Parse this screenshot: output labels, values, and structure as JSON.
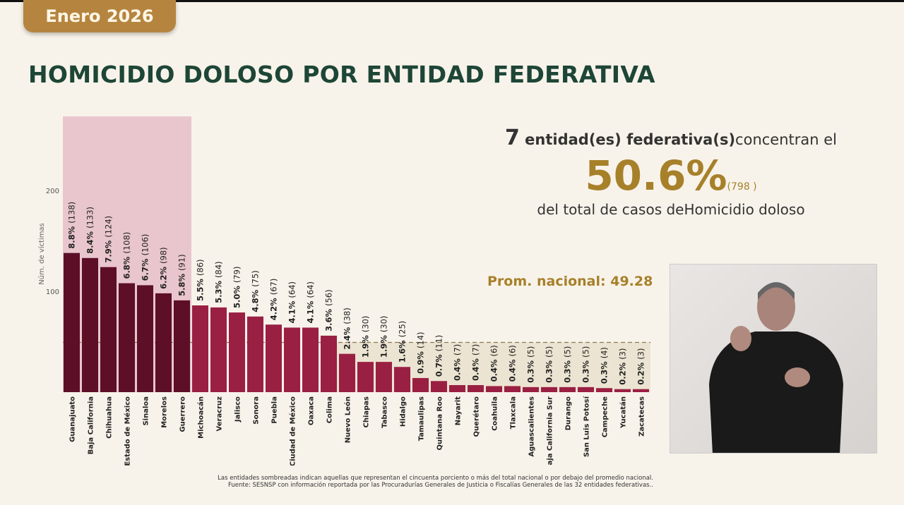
{
  "header": {
    "badge": "Enero 2026",
    "title": "HOMICIDIO DOLOSO POR ENTIDAD FEDERATIVA"
  },
  "summary": {
    "count": "7",
    "line1": " entidad(es) federativa(s)",
    "line1b": "concentran el",
    "percent": "50.6%",
    "total": "(798 )",
    "line3": "del total de casos deHomicidio doloso"
  },
  "average_label": "Prom. nacional: 49.28",
  "footer": {
    "note": "Las entidades sombreadas indican aquellas que representan el cincuenta porciento o más del total nacional o por debajo del promedio nacional.",
    "source": "Fuente: SESNSP con información reportada por las Procuradurías Generales de Justicia o Fiscalías Generales de las 32 entidades federativas.."
  },
  "colors": {
    "top": "#5c0f27",
    "rest": "#9a2043",
    "top_shade": "#e9c6cd",
    "below_avg_shade": "#ece4d2",
    "title": "#1d4637",
    "accent": "#a7802a"
  },
  "chart_data": {
    "type": "bar",
    "ylabel": "Núm. de víctimas",
    "ylim": [
      0,
      270
    ],
    "yticks": [
      100,
      200
    ],
    "average": 49.28,
    "top_group_count": 7,
    "categories": [
      "Guanajuato",
      "Baja California",
      "Chihuahua",
      "Estado de México",
      "Sinaloa",
      "Morelos",
      "Guerrero",
      "Michoacán",
      "Veracruz",
      "Jalisco",
      "Sonora",
      "Puebla",
      "Ciudad de México",
      "Oaxaca",
      "Colima",
      "Nuevo León",
      "Chiapas",
      "Tabasco",
      "Hidalgo",
      "Tamaulipas",
      "Quintana Roo",
      "Nayarit",
      "Querétaro",
      "Coahuila",
      "Tlaxcala",
      "Aguascalientes",
      "Baja California Sur",
      "Durango",
      "San Luis Potosí",
      "Campeche",
      "Yucatán",
      "Zacatecas"
    ],
    "values": [
      138,
      133,
      124,
      108,
      106,
      98,
      91,
      86,
      84,
      79,
      75,
      67,
      64,
      64,
      56,
      38,
      30,
      30,
      25,
      14,
      11,
      7,
      7,
      6,
      6,
      5,
      5,
      5,
      5,
      4,
      3,
      3
    ],
    "percents": [
      "8.8%",
      "8.4%",
      "7.9%",
      "6.8%",
      "6.7%",
      "6.2%",
      "5.8%",
      "5.5%",
      "5.3%",
      "5.0%",
      "4.8%",
      "4.2%",
      "4.1%",
      "4.1%",
      "3.6%",
      "2.4%",
      "1.9%",
      "1.9%",
      "1.6%",
      "0.9%",
      "0.7%",
      "0.4%",
      "0.4%",
      "0.4%",
      "0.4%",
      "0.3%",
      "0.3%",
      "0.3%",
      "0.3%",
      "0.3%",
      "0.2%",
      "0.2%"
    ]
  }
}
